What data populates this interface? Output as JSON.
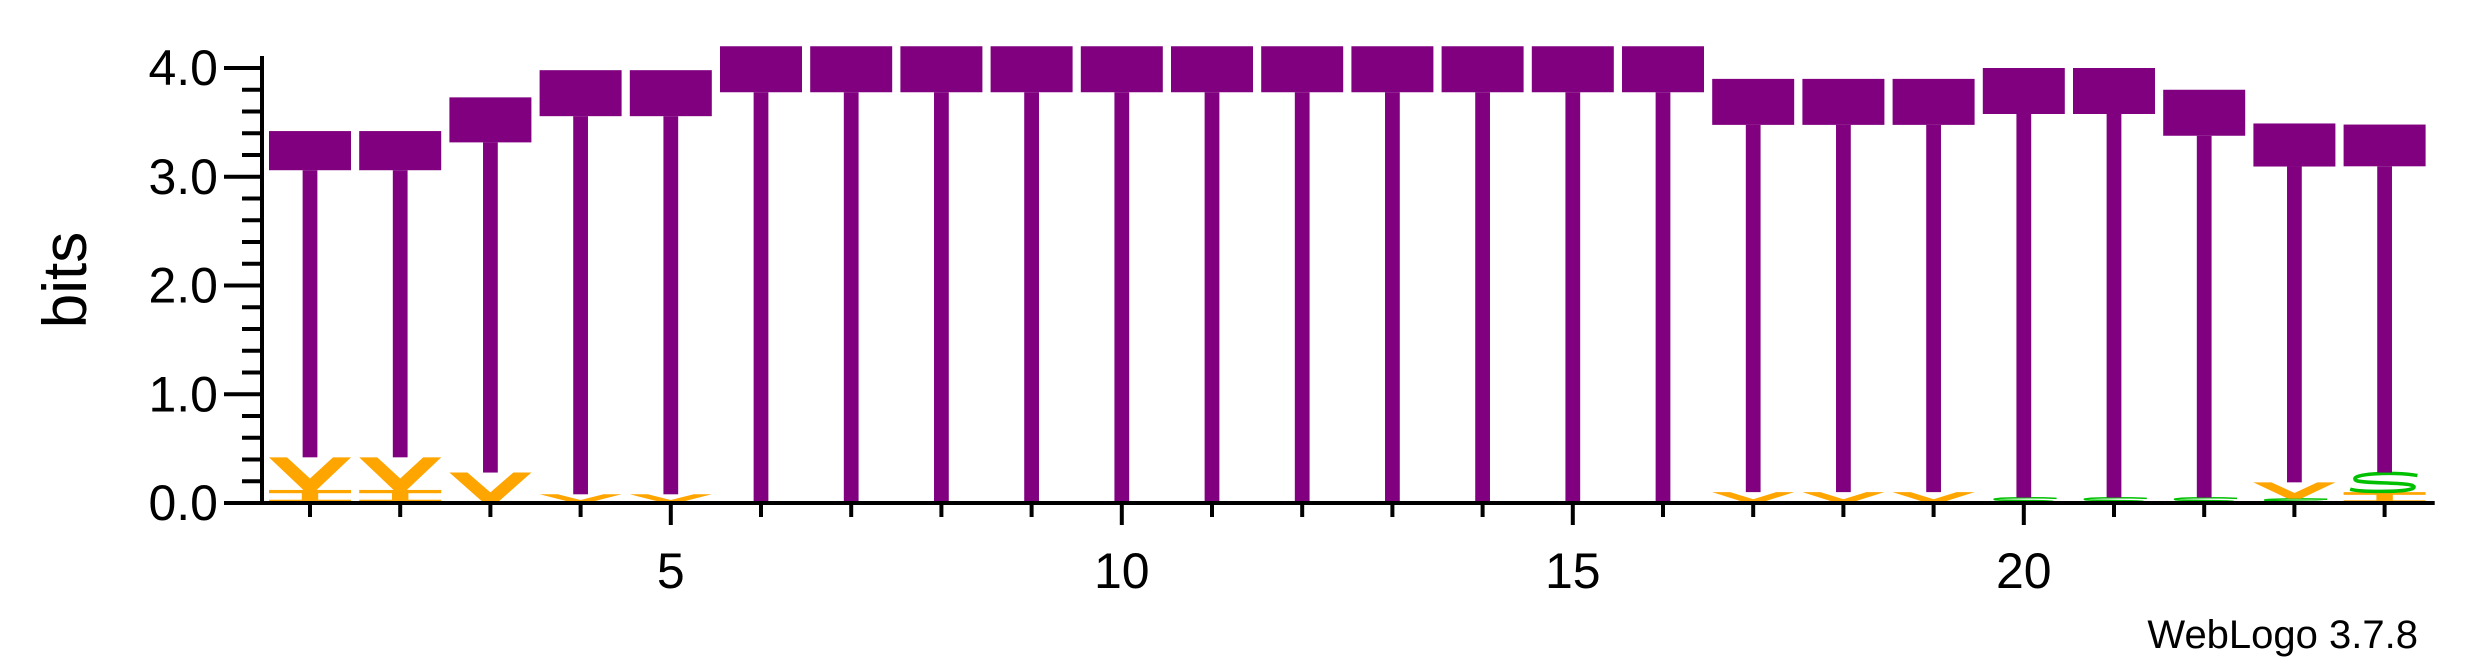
{
  "chart_data": {
    "type": "sequence-logo",
    "ylabel": "bits",
    "xlabel": "",
    "ylim": [
      0,
      4.0
    ],
    "y_ticks": [
      "0.0",
      "1.0",
      "2.0",
      "3.0",
      "4.0"
    ],
    "x_ticks": [
      "5",
      "10",
      "15",
      "20"
    ],
    "x_tick_positions": [
      5,
      10,
      15,
      20
    ],
    "positions": [
      1,
      2,
      3,
      4,
      5,
      6,
      7,
      8,
      9,
      10,
      11,
      12,
      13,
      14,
      15,
      16,
      17,
      18,
      19,
      20,
      21,
      22,
      23,
      24
    ],
    "stacks": [
      {
        "position": 1,
        "letters": [
          {
            "letter": "T",
            "bits": 3.0,
            "color": "#800080"
          },
          {
            "letter": "V",
            "bits": 0.3,
            "color": "#FFA500"
          },
          {
            "letter": "I",
            "bits": 0.12,
            "color": "#FFA500"
          }
        ]
      },
      {
        "position": 2,
        "letters": [
          {
            "letter": "T",
            "bits": 3.0,
            "color": "#800080"
          },
          {
            "letter": "V",
            "bits": 0.3,
            "color": "#FFA500"
          },
          {
            "letter": "I",
            "bits": 0.12,
            "color": "#FFA500"
          }
        ]
      },
      {
        "position": 3,
        "letters": [
          {
            "letter": "T",
            "bits": 3.45,
            "color": "#800080"
          },
          {
            "letter": "V",
            "bits": 0.28,
            "color": "#FFA500"
          }
        ]
      },
      {
        "position": 4,
        "letters": [
          {
            "letter": "T",
            "bits": 3.9,
            "color": "#800080"
          },
          {
            "letter": "V",
            "bits": 0.08,
            "color": "#FFA500"
          }
        ]
      },
      {
        "position": 5,
        "letters": [
          {
            "letter": "T",
            "bits": 3.9,
            "color": "#800080"
          },
          {
            "letter": "V",
            "bits": 0.08,
            "color": "#FFA500"
          }
        ]
      },
      {
        "position": 6,
        "letters": [
          {
            "letter": "T",
            "bits": 4.2,
            "color": "#800080"
          }
        ]
      },
      {
        "position": 7,
        "letters": [
          {
            "letter": "T",
            "bits": 4.2,
            "color": "#800080"
          }
        ]
      },
      {
        "position": 8,
        "letters": [
          {
            "letter": "T",
            "bits": 4.2,
            "color": "#800080"
          }
        ]
      },
      {
        "position": 9,
        "letters": [
          {
            "letter": "T",
            "bits": 4.2,
            "color": "#800080"
          }
        ]
      },
      {
        "position": 10,
        "letters": [
          {
            "letter": "T",
            "bits": 4.2,
            "color": "#800080"
          }
        ]
      },
      {
        "position": 11,
        "letters": [
          {
            "letter": "T",
            "bits": 4.2,
            "color": "#800080"
          }
        ]
      },
      {
        "position": 12,
        "letters": [
          {
            "letter": "T",
            "bits": 4.2,
            "color": "#800080"
          }
        ]
      },
      {
        "position": 13,
        "letters": [
          {
            "letter": "T",
            "bits": 4.2,
            "color": "#800080"
          }
        ]
      },
      {
        "position": 14,
        "letters": [
          {
            "letter": "T",
            "bits": 4.2,
            "color": "#800080"
          }
        ]
      },
      {
        "position": 15,
        "letters": [
          {
            "letter": "T",
            "bits": 4.2,
            "color": "#800080"
          }
        ]
      },
      {
        "position": 16,
        "letters": [
          {
            "letter": "T",
            "bits": 4.2,
            "color": "#800080"
          }
        ]
      },
      {
        "position": 17,
        "letters": [
          {
            "letter": "T",
            "bits": 3.8,
            "color": "#800080"
          },
          {
            "letter": "V",
            "bits": 0.1,
            "color": "#FFA500"
          }
        ]
      },
      {
        "position": 18,
        "letters": [
          {
            "letter": "T",
            "bits": 3.8,
            "color": "#800080"
          },
          {
            "letter": "V",
            "bits": 0.1,
            "color": "#FFA500"
          }
        ]
      },
      {
        "position": 19,
        "letters": [
          {
            "letter": "T",
            "bits": 3.8,
            "color": "#800080"
          },
          {
            "letter": "V",
            "bits": 0.1,
            "color": "#FFA500"
          }
        ]
      },
      {
        "position": 20,
        "letters": [
          {
            "letter": "T",
            "bits": 3.95,
            "color": "#800080"
          },
          {
            "letter": "S",
            "bits": 0.05,
            "color": "#00C000"
          }
        ]
      },
      {
        "position": 21,
        "letters": [
          {
            "letter": "T",
            "bits": 3.95,
            "color": "#800080"
          },
          {
            "letter": "S",
            "bits": 0.05,
            "color": "#00C000"
          }
        ]
      },
      {
        "position": 22,
        "letters": [
          {
            "letter": "T",
            "bits": 3.75,
            "color": "#800080"
          },
          {
            "letter": "S",
            "bits": 0.05,
            "color": "#00C000"
          }
        ]
      },
      {
        "position": 23,
        "letters": [
          {
            "letter": "T",
            "bits": 3.3,
            "color": "#800080"
          },
          {
            "letter": "V",
            "bits": 0.15,
            "color": "#FFA500"
          },
          {
            "letter": "S",
            "bits": 0.04,
            "color": "#00C000"
          }
        ]
      },
      {
        "position": 24,
        "letters": [
          {
            "letter": "T",
            "bits": 3.2,
            "color": "#800080"
          },
          {
            "letter": "I",
            "bits": 0.1,
            "color": "#FFA500"
          },
          {
            "letter": "S",
            "bits": 0.18,
            "color": "#00C000"
          }
        ]
      }
    ],
    "grid": false,
    "legend": "none"
  },
  "footer": {
    "credit": "WebLogo 3.7.8"
  },
  "colors": {
    "axis": "#000000",
    "background": "#ffffff"
  }
}
